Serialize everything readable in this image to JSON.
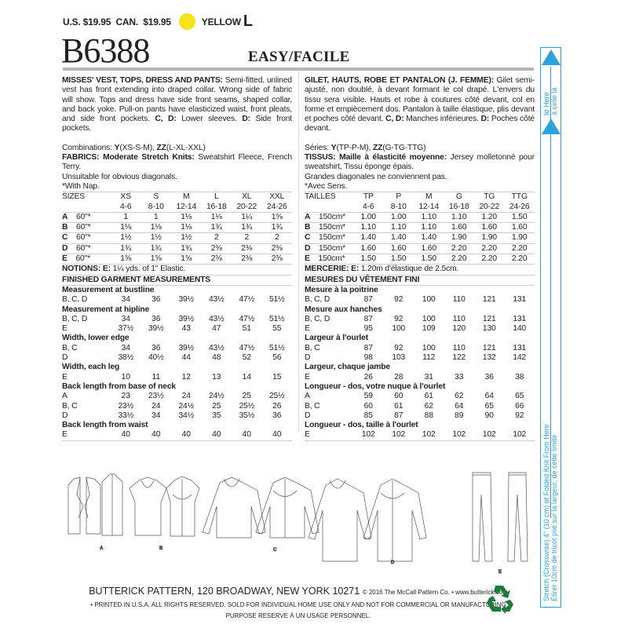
{
  "header": {
    "us_price": "U.S. $19.95",
    "can_price": "CAN.  $19.95",
    "color_label": "YELLOW",
    "color_hex": "#f7e21c",
    "size_letter": "L",
    "pattern_number": "B6388",
    "difficulty": "EASY/FACILE"
  },
  "english": {
    "title": "MISSES' VEST, TOPS, DRESS AND PANTS:",
    "description": " Semi-fitted, unlined vest has front extending into draped collar. Wrong side of fabric will show. Tops and dress have side front seams, shaped collar, and back yoke. Pull-on pants have elasticized waist, front pleats, and side front pockets. ",
    "cd_label": "C, D:",
    "cd_text": " Lower sleeves.",
    "d_label": "D:",
    "d_text": " Side front pockets.",
    "combinations_prefix": "Combinations: ",
    "comb_y": "Y",
    "comb_y_sizes": "(XS-S-M), ",
    "comb_zz": "ZZ",
    "comb_zz_sizes": "(L-XL-XXL)",
    "fabrics_label": "FABRICS: Moderate Stretch Knits:",
    "fabrics_text": " Sweatshirt Fleece, French Terry.",
    "unsuitable": "Unsuitable for obvious diagonals.",
    "nap": "*With Nap.",
    "sizes_header": [
      "SIZES",
      "XS",
      "S",
      "M",
      "L",
      "XL",
      "XXL"
    ],
    "sizes_sub": [
      "",
      "4-6",
      "8-10",
      "12-14",
      "16-18",
      "20-22",
      "24-26"
    ],
    "yardage": [
      [
        "A",
        "60\"*",
        "1",
        "1",
        "1⅛",
        "1⅛",
        "1¼",
        "1⅝"
      ],
      [
        "B",
        "60\"*",
        "1⅛",
        "1⅛",
        "1⅛",
        "1¾",
        "1¾",
        "1¾"
      ],
      [
        "C",
        "60\"*",
        "1½",
        "1½",
        "1½",
        "2",
        "2",
        "2"
      ],
      [
        "D",
        "60\"*",
        "1¾",
        "1¾",
        "1¾",
        "2⅜",
        "2⅜",
        "2⅜"
      ],
      [
        "E",
        "60\"*",
        "1⅝",
        "1⅝",
        "1⅝",
        "2⅜",
        "2⅜",
        "2⅜"
      ]
    ],
    "notions_label": "NOTIONS: E:",
    "notions_text": " 1¼ yds. of 1\" Elastic.",
    "finished_title": "FINISHED GARMENT MEASUREMENTS",
    "measurements": [
      {
        "title": "Measurement at bustline",
        "rows": [
          [
            "B, C, D",
            "34",
            "36",
            "39½",
            "43½",
            "47½",
            "51½"
          ]
        ]
      },
      {
        "title": "Measurement at hipline",
        "rows": [
          [
            "B, C, D",
            "34",
            "36",
            "39½",
            "43½",
            "47½",
            "51½"
          ],
          [
            "E",
            "37½",
            "39½",
            "43",
            "47",
            "51",
            "55"
          ]
        ]
      },
      {
        "title": "Width, lower edge",
        "rows": [
          [
            "B, C",
            "34",
            "36",
            "39½",
            "43½",
            "47½",
            "51½"
          ],
          [
            "D",
            "38½",
            "40½",
            "44",
            "48",
            "52",
            "56"
          ]
        ]
      },
      {
        "title": "Width, each leg",
        "rows": [
          [
            "E",
            "10",
            "11",
            "12",
            "13",
            "14",
            "15"
          ]
        ]
      },
      {
        "title": "Back length from base of neck",
        "rows": [
          [
            "A",
            "23",
            "23½",
            "24",
            "24½",
            "25",
            "25½"
          ],
          [
            "B, C",
            "23½",
            "24",
            "24½",
            "25",
            "25½",
            "26"
          ],
          [
            "D",
            "33½",
            "34",
            "34½",
            "35",
            "35½",
            "36"
          ]
        ]
      },
      {
        "title": "Back length from waist",
        "rows": [
          [
            "E",
            "40",
            "40",
            "40",
            "40",
            "40",
            "40"
          ]
        ]
      }
    ]
  },
  "french": {
    "title": "GILET, HAUTS, ROBE ET PANTALON (J. FEMME):",
    "description": " Gilet semi-ajusté, non doublé, à devant formant le col drapé. L'envers du tissu sera visible. Hauts et robe à coutures côté devant, col en forme et empiècement dos. Pantalon à taille élastique, plis devant et poches côté devant. ",
    "cd_label": "C, D:",
    "cd_text": " Manches inférieures.",
    "d_label": "D:",
    "d_text": " Poches côté devant.",
    "combinations_prefix": "Séries: ",
    "comb_y": "Y",
    "comb_y_sizes": "(TP-P-M), ",
    "comb_zz": "ZZ",
    "comb_zz_sizes": "(G-TG-TTG)",
    "fabrics_label": "TISSUS: Maille à élasticité moyenne:",
    "fabrics_text": " Jersey molletonné pour sweatshirt, Tissu éponge épais.",
    "unsuitable": "Grandes diagonales ne conviennent pas.",
    "nap": "*Avec Sens.",
    "sizes_header": [
      "TAILLES",
      "TP",
      "P",
      "M",
      "G",
      "TG",
      "TTG"
    ],
    "sizes_sub": [
      "",
      "4-6",
      "8-10",
      "12-14",
      "16-18",
      "20-22",
      "24-26"
    ],
    "yardage": [
      [
        "A",
        "150cm*",
        "1.00",
        "1.00",
        "1.10",
        "1.10",
        "1.20",
        "1.50"
      ],
      [
        "B",
        "150cm*",
        "1.10",
        "1.10",
        "1.10",
        "1.60",
        "1.60",
        "1.60"
      ],
      [
        "C",
        "150cm*",
        "1.40",
        "1.40",
        "1.40",
        "1.90",
        "1.90",
        "1.90"
      ],
      [
        "D",
        "150cm*",
        "1.60",
        "1.60",
        "1.60",
        "2.20",
        "2.20",
        "2.20"
      ],
      [
        "E",
        "150cm*",
        "1.50",
        "1.50",
        "1.50",
        "2.20",
        "2.20",
        "2.20"
      ]
    ],
    "notions_label": "MERCERIE: E:",
    "notions_text": " 1.20m d'élastique de 2.5cm.",
    "finished_title": "MESURES DU VÊTEMENT FINI",
    "measurements": [
      {
        "title": "Mesure à la poitrine",
        "rows": [
          [
            "B, C, D",
            "87",
            "92",
            "100",
            "110",
            "121",
            "131"
          ]
        ]
      },
      {
        "title": "Mesure aux hanches",
        "rows": [
          [
            "B, C, D",
            "87",
            "92",
            "100",
            "110",
            "121",
            "131"
          ],
          [
            "E",
            "95",
            "100",
            "109",
            "120",
            "130",
            "140"
          ]
        ]
      },
      {
        "title": "Largeur à l'ourlet",
        "rows": [
          [
            "B, C",
            "87",
            "92",
            "100",
            "110",
            "121",
            "131"
          ],
          [
            "D",
            "98",
            "103",
            "112",
            "122",
            "132",
            "142"
          ]
        ]
      },
      {
        "title": "Largeur, chaque jambe",
        "rows": [
          [
            "E",
            "26",
            "28",
            "31",
            "33",
            "36",
            "38"
          ]
        ]
      },
      {
        "title": "Longueur - dos, votre nuque à l'ourlet",
        "rows": [
          [
            "A",
            "59",
            "60",
            "61",
            "62",
            "64",
            "65"
          ],
          [
            "B, C",
            "60",
            "61",
            "62",
            "64",
            "65",
            "66"
          ],
          [
            "D",
            "85",
            "87",
            "88",
            "89",
            "90",
            "92"
          ]
        ]
      },
      {
        "title": "Longueur - dos, taille à l'ourlet",
        "rows": [
          [
            "E",
            "102",
            "102",
            "102",
            "102",
            "102",
            "102"
          ]
        ]
      }
    ]
  },
  "gauge": {
    "top_en": "to Here",
    "top_fr": "à celle là",
    "main_en": "Stretch (Crosswise) 4\" (10 cm) of Folded Knit From Here",
    "main_fr": "Étirer 10cm de tricot plié sur la largeur, de cette limite",
    "color": "#2aa3dc"
  },
  "views": [
    "A",
    "B",
    "C",
    "D",
    "E"
  ],
  "footer": {
    "address": "BUTTERICK PATTERN, 120 BROADWAY, NEW YORK 10271",
    "copyright": "© 2016 The McCall Pattern Co.",
    "bullet": " • ",
    "website": "www.butterick.com",
    "rights": "• PRINTED IN U.S.A. ALL RIGHTS RESERVED. SOLD FOR INDIVIDUAL HOME USE ONLY AND NOT FOR COMMERCIAL OR MANUFACTURING",
    "rights_fr": "PURPOSE RESERVE À UN USAGE PERSONNEL.",
    "recycle_color": "#1e7a3c"
  }
}
